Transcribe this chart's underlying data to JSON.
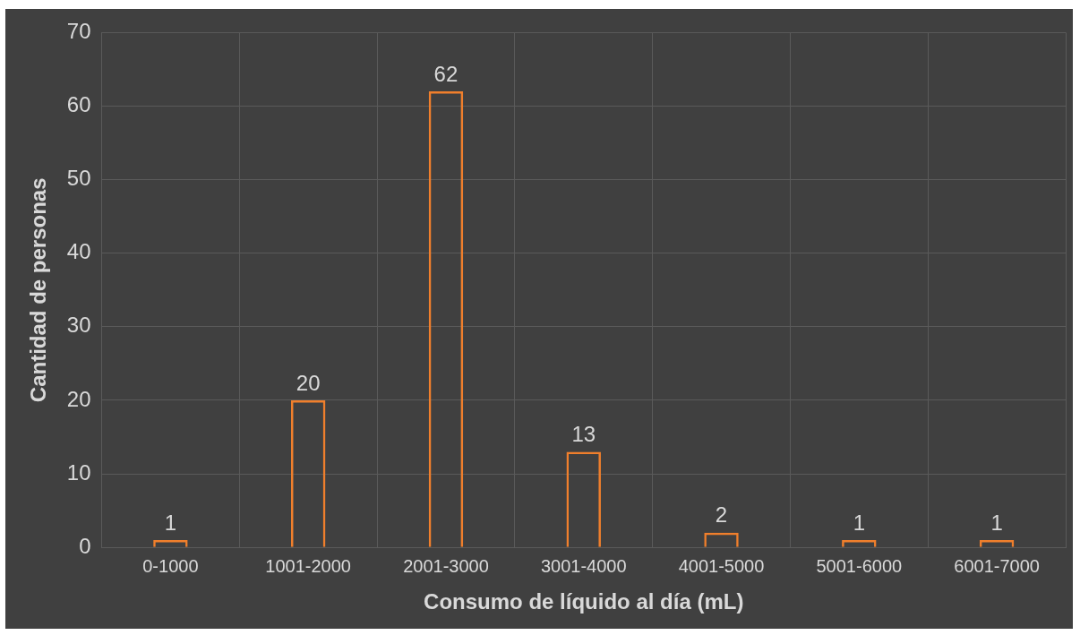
{
  "chart_data": {
    "type": "bar",
    "xlabel": "Consumo de líquido al día (mL)",
    "ylabel": "Cantidad de personas",
    "categories": [
      "0-1000",
      "1001-2000",
      "2001-3000",
      "3001-4000",
      "4001-5000",
      "5001-6000",
      "6001-7000"
    ],
    "values": [
      1,
      20,
      62,
      13,
      2,
      1,
      1
    ],
    "color": "#f07f2c",
    "ylim": [
      0,
      70
    ],
    "yticks": [
      0,
      10,
      20,
      30,
      40,
      50,
      60,
      70
    ],
    "grid": true,
    "legend": false,
    "data_labels": true
  }
}
